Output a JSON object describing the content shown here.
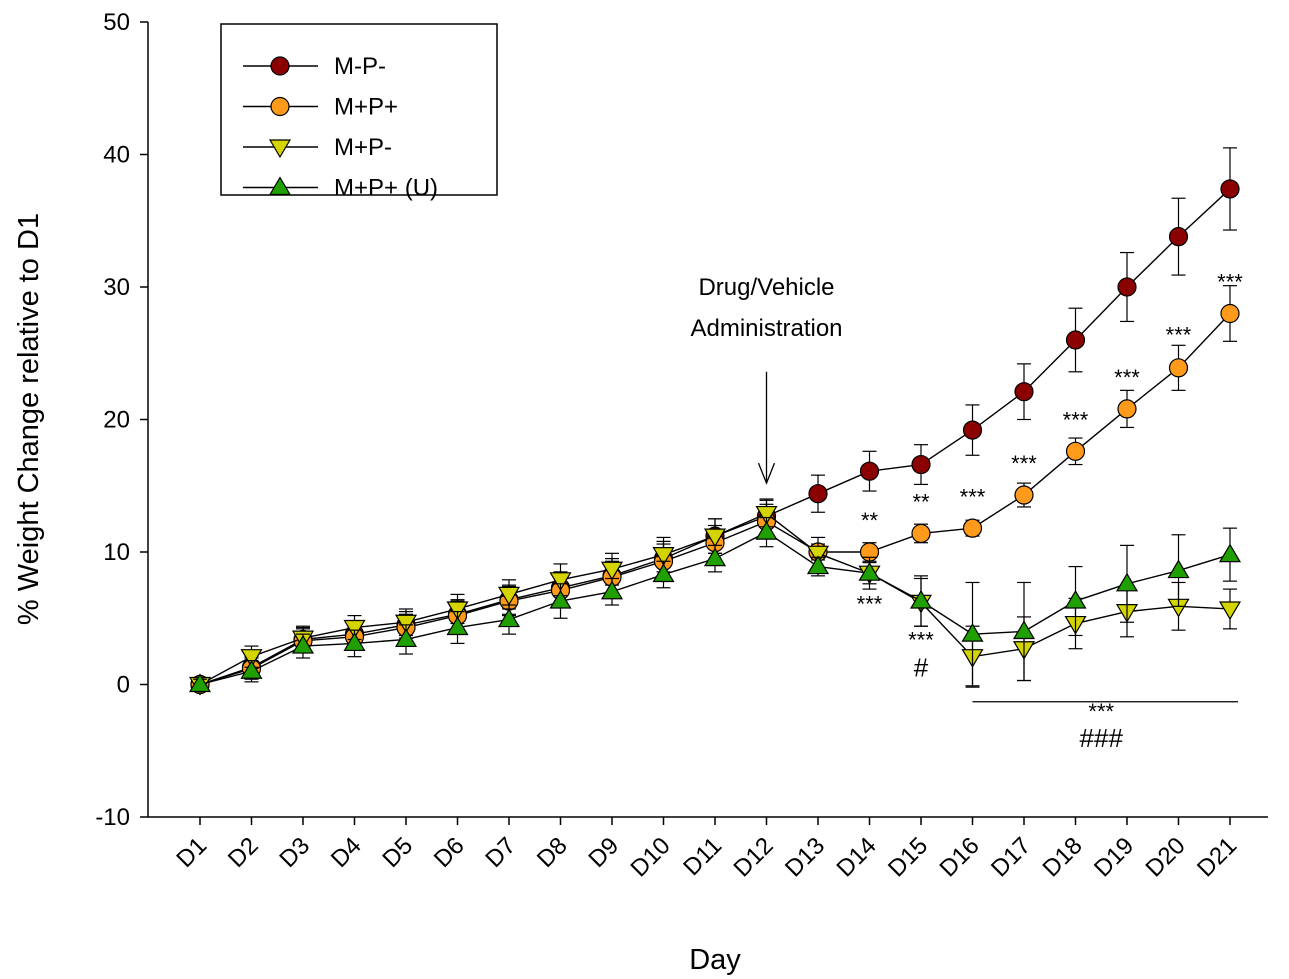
{
  "chart_data": {
    "type": "line",
    "title": "",
    "xlabel": "Day",
    "ylabel": "% Weight Change relative to D1",
    "ylim": [
      -10,
      50
    ],
    "yticks": [
      -10,
      0,
      10,
      20,
      30,
      40,
      50
    ],
    "grid": false,
    "legend_position": "top-left",
    "categories": [
      "D1",
      "D2",
      "D3",
      "D4",
      "D5",
      "D6",
      "D7",
      "D8",
      "D9",
      "D10",
      "D11",
      "D12",
      "D13",
      "D14",
      "D15",
      "D16",
      "D17",
      "D18",
      "D19",
      "D20",
      "D21"
    ],
    "series": [
      {
        "name": "M-P-",
        "marker": "circle",
        "color": "#8b0000",
        "values": [
          0,
          1.3,
          3.4,
          3.8,
          4.5,
          5.3,
          6.4,
          7.3,
          8.2,
          9.5,
          11.2,
          12.7,
          14.4,
          16.1,
          16.6,
          19.2,
          22.1,
          26.0,
          30.0,
          33.8,
          37.4
        ],
        "errors": [
          0.4,
          0.8,
          0.9,
          0.9,
          1.0,
          1.1,
          1.1,
          1.2,
          1.3,
          1.3,
          1.3,
          1.3,
          1.4,
          1.5,
          1.5,
          1.9,
          2.1,
          2.4,
          2.6,
          2.9,
          3.1
        ]
      },
      {
        "name": "M+P+",
        "marker": "circle",
        "color": "#ff9a1a",
        "values": [
          0,
          1.2,
          3.3,
          3.6,
          4.3,
          5.2,
          6.3,
          7.1,
          8.1,
          9.3,
          10.7,
          12.3,
          10.0,
          10.0,
          11.4,
          11.8,
          14.3,
          17.6,
          20.8,
          23.9,
          28.0
        ],
        "errors": [
          0.4,
          0.8,
          0.9,
          0.9,
          1.0,
          1.1,
          1.1,
          1.2,
          1.2,
          1.3,
          1.3,
          1.3,
          0.6,
          0.7,
          0.7,
          0.6,
          0.9,
          1.0,
          1.4,
          1.7,
          2.1
        ]
      },
      {
        "name": "M+P-",
        "marker": "triangle-down",
        "color": "#d4d400",
        "values": [
          0,
          2.1,
          3.5,
          4.3,
          4.7,
          5.7,
          6.8,
          7.9,
          8.7,
          9.8,
          11.2,
          12.9,
          9.9,
          8.4,
          6.2,
          2.1,
          2.7,
          4.6,
          5.5,
          5.9,
          5.7
        ],
        "errors": [
          0.4,
          0.8,
          0.9,
          0.9,
          1.0,
          1.1,
          1.1,
          1.2,
          1.2,
          1.3,
          1.3,
          1.0,
          1.2,
          1.2,
          1.8,
          2.3,
          2.4,
          1.9,
          1.9,
          1.8,
          1.5
        ]
      },
      {
        "name": "M+P+ (U)",
        "marker": "triangle-up",
        "color": "#1fa000",
        "values": [
          0,
          1.0,
          2.9,
          3.1,
          3.4,
          4.3,
          4.9,
          6.3,
          7.0,
          8.3,
          9.5,
          11.5,
          8.9,
          8.4,
          6.3,
          3.8,
          4.0,
          6.3,
          7.6,
          8.6,
          9.8
        ],
        "errors": [
          0.4,
          0.8,
          0.9,
          1.0,
          1.1,
          1.2,
          1.1,
          1.3,
          1.0,
          1.0,
          1.0,
          1.1,
          0.7,
          0.8,
          1.9,
          3.9,
          3.7,
          2.6,
          2.9,
          2.7,
          2.0
        ]
      }
    ],
    "annotations": [
      {
        "text": "Drug/Vehicle",
        "x": "D12",
        "y": 29.4
      },
      {
        "text": "Administration",
        "x": "D12",
        "y": 26.3
      },
      {
        "text": "**",
        "x": "D14",
        "y": 11.8
      },
      {
        "text": "***",
        "x": "D14",
        "y": 5.5
      },
      {
        "text": "**",
        "x": "D15",
        "y": 13.2
      },
      {
        "text": "***",
        "x": "D15",
        "y": 2.8
      },
      {
        "text": "#",
        "x": "D15",
        "y": 0.6
      },
      {
        "text": "***",
        "x": "D16",
        "y": 13.6
      },
      {
        "text": "***",
        "x": "D17",
        "y": 16.1
      },
      {
        "text": "***",
        "x": "D18",
        "y": 19.4
      },
      {
        "text": "***",
        "x": "D19",
        "y": 22.6
      },
      {
        "text": "***",
        "x": "D20",
        "y": 25.8
      },
      {
        "text": "***",
        "x": "D21",
        "y": 29.8
      },
      {
        "text": "***",
        "x": "D18.5",
        "y": -2.6
      },
      {
        "text": "###",
        "x": "D18.5",
        "y": -4.7
      }
    ],
    "arrow": {
      "x": "D12",
      "y_from": 23.6,
      "y_to": 15.2
    },
    "bracket": {
      "x_from": "D16",
      "x_to": "D21",
      "y": -1.3
    }
  }
}
